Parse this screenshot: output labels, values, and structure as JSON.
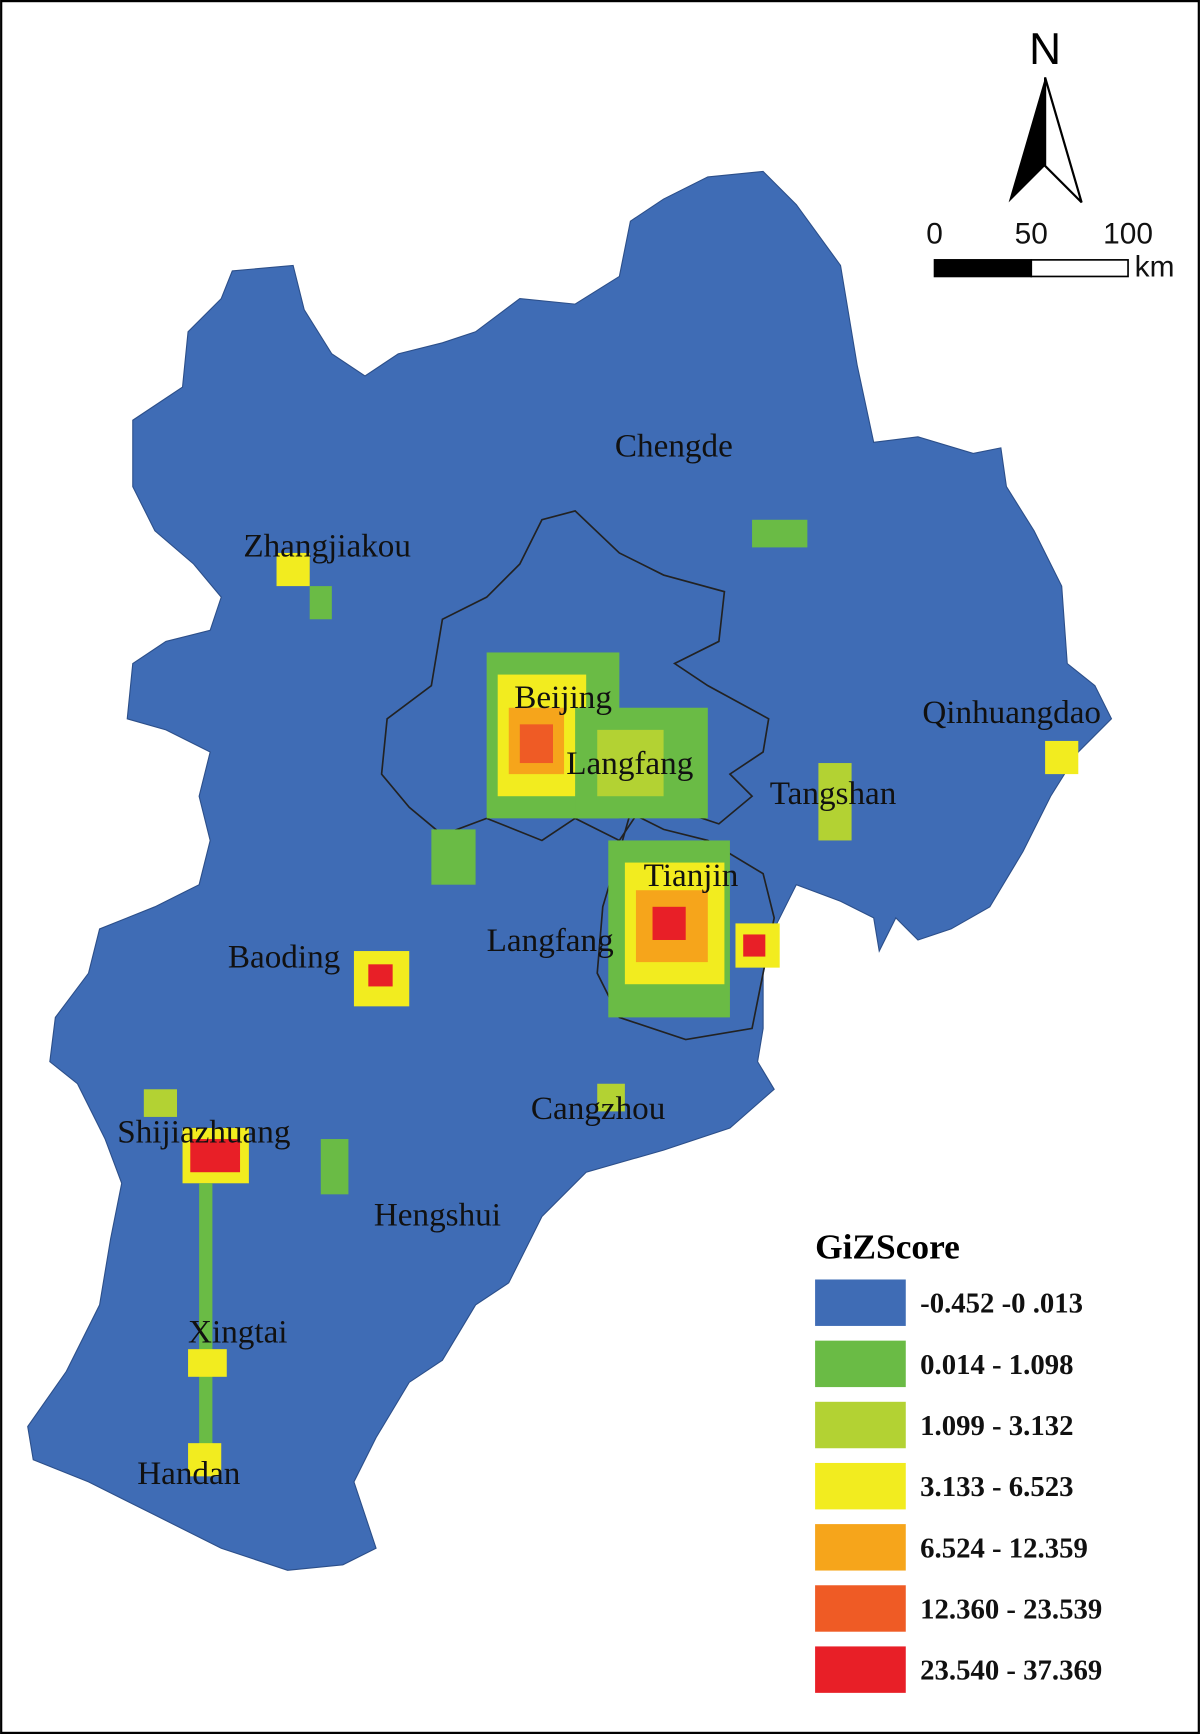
{
  "north_label": "N",
  "scale_bar": {
    "ticks": [
      0,
      50,
      100
    ],
    "unit": "km"
  },
  "cities": [
    "Chengde",
    "Zhangjiakou",
    "Beijing",
    "Langfang",
    "Qinhuangdao",
    "Tangshan",
    "Tianjin",
    "Baoding",
    "Langfang",
    "Cangzhou",
    "Shijiazhuang",
    "Hengshui",
    "Xingtai",
    "Handan"
  ],
  "legend": {
    "title": "GiZScore",
    "items": [
      {
        "label": "-0.452 -0 .013",
        "color": "#3f6cb5"
      },
      {
        "label": "0.014 - 1.098",
        "color": "#6abb45"
      },
      {
        "label": "1.099 - 3.132",
        "color": "#b3d233"
      },
      {
        "label": "3.133 - 6.523",
        "color": "#f2ec1f"
      },
      {
        "label": "6.524 - 12.359",
        "color": "#f6a51b"
      },
      {
        "label": "12.360 - 23.539",
        "color": "#ef5b25"
      },
      {
        "label": "23.540 - 37.369",
        "color": "#e81f27"
      }
    ]
  }
}
